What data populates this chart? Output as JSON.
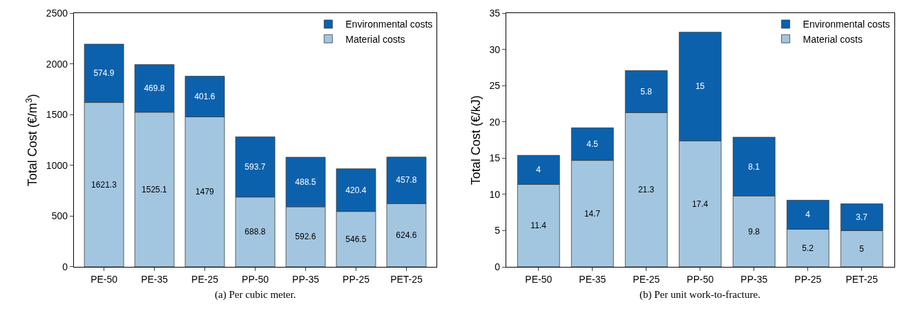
{
  "chart_data": [
    {
      "type": "bar",
      "stacked": true,
      "ylabel": "Total Cost (€/m$^{3}$)",
      "categories": [
        "PE-50",
        "PE-35",
        "PE-25",
        "PP-50",
        "PP-35",
        "PP-25",
        "PET-25"
      ],
      "series": [
        {
          "name": "Material costs",
          "color": "#a3c6e0",
          "values": [
            1621.3,
            1525.1,
            1479,
            688.8,
            592.6,
            546.5,
            624.6
          ]
        },
        {
          "name": "Environmental costs",
          "color": "#0c61ad",
          "values": [
            574.9,
            469.8,
            401.6,
            593.7,
            488.5,
            420.4,
            457.8
          ]
        }
      ],
      "ylim": [
        0,
        2500
      ],
      "yticks": [
        0,
        500,
        1000,
        1500,
        2000,
        2500
      ],
      "data_labels": true,
      "legend": "top right",
      "annotations": [
        "(a) Per cubic meter."
      ]
    },
    {
      "type": "bar",
      "stacked": true,
      "ylabel": "Total Cost (€/kJ)",
      "categories": [
        "PE-50",
        "PE-35",
        "PE-25",
        "PP-50",
        "PP-35",
        "PP-25",
        "PET-25"
      ],
      "series": [
        {
          "name": "Material costs",
          "color": "#a3c6e0",
          "values": [
            11.4,
            14.7,
            21.3,
            17.4,
            9.8,
            5.2,
            5
          ]
        },
        {
          "name": "Environmental costs",
          "color": "#0c61ad",
          "values": [
            4,
            4.5,
            5.8,
            15,
            8.1,
            4,
            3.7
          ]
        }
      ],
      "ylim": [
        0,
        35
      ],
      "yticks": [
        0,
        5,
        10,
        15,
        20,
        25,
        30,
        35
      ],
      "data_labels": true,
      "legend": "top right",
      "annotations": [
        "(b) Per unit work-to-fracture."
      ]
    }
  ]
}
